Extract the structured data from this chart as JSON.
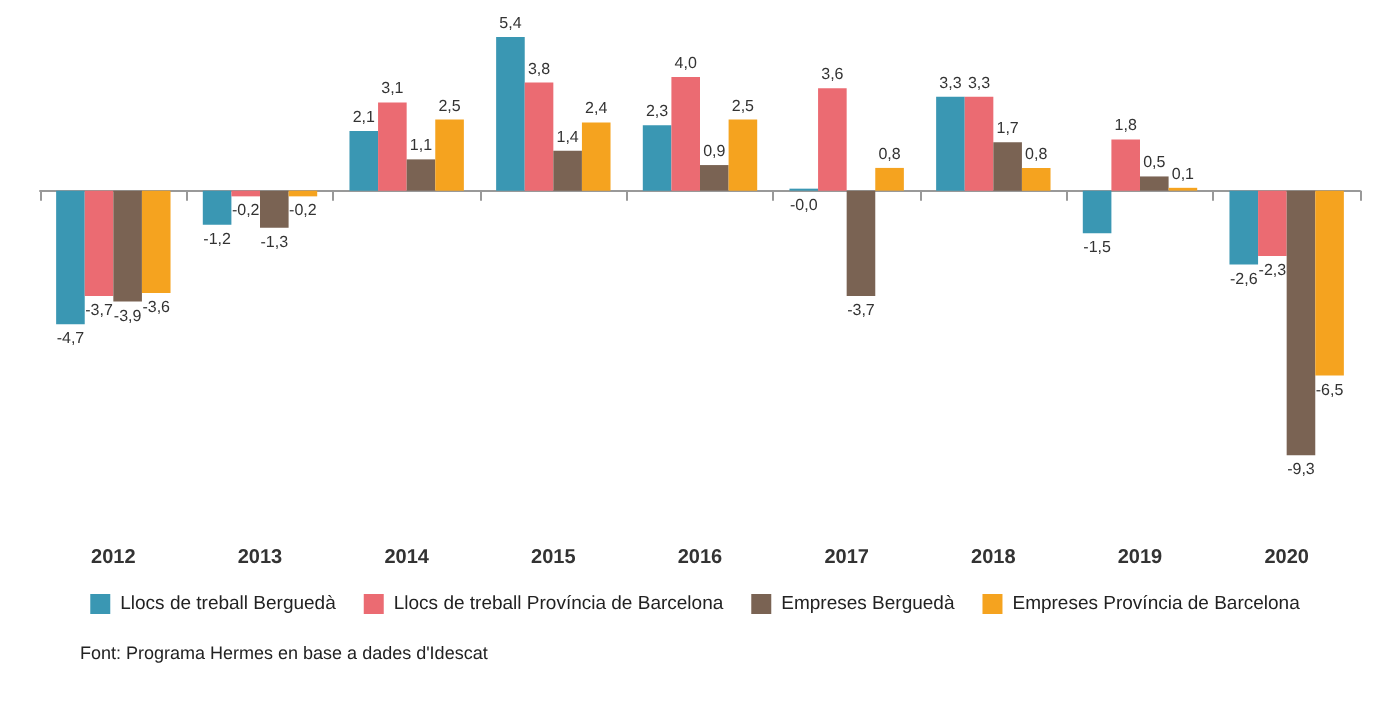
{
  "chart_data": {
    "type": "bar",
    "categories": [
      "2012",
      "2013",
      "2014",
      "2015",
      "2016",
      "2017",
      "2018",
      "2019",
      "2020"
    ],
    "series": [
      {
        "name": "Llocs de treball Berguedà",
        "color": "#3a97b3",
        "values": [
          -4.7,
          -1.2,
          2.1,
          5.4,
          2.3,
          -0.0,
          3.3,
          -1.5,
          -2.6
        ],
        "value_labels": [
          "-4,7",
          "-1,2",
          "2,1",
          "5,4",
          "2,3",
          "-0,0",
          "3,3",
          "-1,5",
          "-2,6"
        ]
      },
      {
        "name": "Llocs de treball Província de Barcelona",
        "color": "#eb6b72",
        "values": [
          -3.7,
          -0.2,
          3.1,
          3.8,
          4.0,
          3.6,
          3.3,
          1.8,
          -2.3
        ],
        "value_labels": [
          "-3,7",
          "-0,2",
          "3,1",
          "3,8",
          "4,0",
          "3,6",
          "3,3",
          "1,8",
          "-2,3"
        ]
      },
      {
        "name": "Empreses Berguedà",
        "color": "#7a6353",
        "values": [
          -3.9,
          -1.3,
          1.1,
          1.4,
          0.9,
          -3.7,
          1.7,
          0.5,
          -9.3
        ],
        "value_labels": [
          "-3,9",
          "-1,3",
          "1,1",
          "1,4",
          "0,9",
          "-3,7",
          "1,7",
          "0,5",
          "-9,3"
        ]
      },
      {
        "name": "Empreses Província de Barcelona",
        "color": "#f5a31f",
        "values": [
          -3.6,
          -0.2,
          2.5,
          2.4,
          2.5,
          0.8,
          0.8,
          0.1,
          -6.5
        ],
        "value_labels": [
          "-3,6",
          "-0,2",
          "2,5",
          "2,4",
          "2,5",
          "0,8",
          "0,8",
          "0,1",
          "-6,5"
        ]
      }
    ],
    "legend": "bottom",
    "annotations": [
      "Font: Programa Hermes en base a dades d'Idescat"
    ]
  }
}
